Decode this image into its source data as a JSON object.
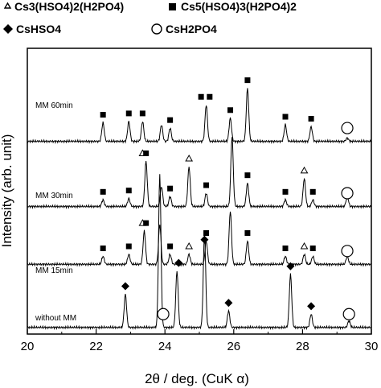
{
  "chart_data": {
    "type": "line",
    "xlabel": "2θ / deg. (CuK α)",
    "ylabel": "Intensity (arb. unit)",
    "xlim": [
      20,
      30
    ],
    "xticks": [
      20,
      22,
      24,
      26,
      28,
      30
    ],
    "ylim": [
      0,
      4.3
    ],
    "grid": false,
    "legend": {
      "placement": "top",
      "entries": [
        {
          "marker": "triangle",
          "label": "Cs3(HSO4)2(H2PO4)"
        },
        {
          "marker": "square",
          "label": "Cs5(HSO4)3(H2PO4)2"
        },
        {
          "marker": "diamond",
          "label": "CsHSO4"
        },
        {
          "marker": "circle",
          "label": "CsH2PO4"
        }
      ]
    },
    "series": [
      {
        "name": "without MM",
        "baseline": 0.1,
        "peaks": [
          {
            "x": 22.85,
            "h": 0.5
          },
          {
            "x": 23.85,
            "h": 2.3
          },
          {
            "x": 24.35,
            "h": 0.85
          },
          {
            "x": 25.15,
            "h": 1.4
          },
          {
            "x": 25.85,
            "h": 0.25
          },
          {
            "x": 27.65,
            "h": 0.8
          },
          {
            "x": 28.25,
            "h": 0.2
          },
          {
            "x": 29.35,
            "h": 0.1
          }
        ],
        "markers": [
          {
            "type": "diamond",
            "x": 22.85
          },
          {
            "type": "circle",
            "x": 23.95
          },
          {
            "type": "diamond",
            "x": 24.4
          },
          {
            "type": "diamond",
            "x": 25.15
          },
          {
            "type": "diamond",
            "x": 25.85
          },
          {
            "type": "diamond",
            "x": 27.65
          },
          {
            "type": "diamond",
            "x": 28.25
          },
          {
            "type": "circle",
            "x": 29.35
          }
        ]
      },
      {
        "name": "MM 15min",
        "baseline": 1.05,
        "peaks": [
          {
            "x": 22.2,
            "h": 0.12
          },
          {
            "x": 22.95,
            "h": 0.15
          },
          {
            "x": 23.4,
            "h": 0.5
          },
          {
            "x": 23.85,
            "h": 0.6
          },
          {
            "x": 24.15,
            "h": 0.15
          },
          {
            "x": 24.7,
            "h": 0.15
          },
          {
            "x": 25.2,
            "h": 0.35
          },
          {
            "x": 25.9,
            "h": 0.8
          },
          {
            "x": 26.4,
            "h": 0.35
          },
          {
            "x": 27.5,
            "h": 0.12
          },
          {
            "x": 28.05,
            "h": 0.15
          },
          {
            "x": 28.3,
            "h": 0.12
          },
          {
            "x": 29.3,
            "h": 0.12
          }
        ],
        "markers": [
          {
            "type": "square",
            "x": 22.2
          },
          {
            "type": "square",
            "x": 22.95
          },
          {
            "type": "triangle",
            "x": 23.35
          },
          {
            "type": "square",
            "x": 23.45
          },
          {
            "type": "square",
            "x": 24.15
          },
          {
            "type": "triangle",
            "x": 24.7
          },
          {
            "type": "square",
            "x": 25.2
          },
          {
            "type": "square",
            "x": 26.4
          },
          {
            "type": "square",
            "x": 27.5
          },
          {
            "type": "triangle",
            "x": 28.05
          },
          {
            "type": "square",
            "x": 28.3
          },
          {
            "type": "circle",
            "x": 29.3
          }
        ]
      },
      {
        "name": "MM 30min",
        "baseline": 1.92,
        "peaks": [
          {
            "x": 22.2,
            "h": 0.1
          },
          {
            "x": 22.95,
            "h": 0.12
          },
          {
            "x": 23.45,
            "h": 0.68
          },
          {
            "x": 23.9,
            "h": 0.3
          },
          {
            "x": 24.15,
            "h": 0.15
          },
          {
            "x": 24.7,
            "h": 0.6
          },
          {
            "x": 25.2,
            "h": 0.2
          },
          {
            "x": 25.95,
            "h": 1.05
          },
          {
            "x": 26.4,
            "h": 0.35
          },
          {
            "x": 27.5,
            "h": 0.1
          },
          {
            "x": 28.05,
            "h": 0.42
          },
          {
            "x": 28.3,
            "h": 0.1
          },
          {
            "x": 29.3,
            "h": 0.15
          }
        ],
        "markers": [
          {
            "type": "square",
            "x": 22.2
          },
          {
            "type": "square",
            "x": 22.95
          },
          {
            "type": "triangle",
            "x": 23.35
          },
          {
            "type": "square",
            "x": 23.45
          },
          {
            "type": "square",
            "x": 24.15
          },
          {
            "type": "triangle",
            "x": 24.7
          },
          {
            "type": "square",
            "x": 25.2
          },
          {
            "type": "square",
            "x": 26.4
          },
          {
            "type": "square",
            "x": 27.5
          },
          {
            "type": "triangle",
            "x": 28.05
          },
          {
            "type": "square",
            "x": 28.3
          },
          {
            "type": "circle",
            "x": 29.3
          }
        ]
      },
      {
        "name": "MM 60min",
        "baseline": 2.9,
        "peaks": [
          {
            "x": 22.2,
            "h": 0.28
          },
          {
            "x": 22.95,
            "h": 0.3
          },
          {
            "x": 23.35,
            "h": 0.3
          },
          {
            "x": 23.9,
            "h": 0.25
          },
          {
            "x": 24.15,
            "h": 0.2
          },
          {
            "x": 25.2,
            "h": 0.55
          },
          {
            "x": 25.9,
            "h": 0.35
          },
          {
            "x": 26.4,
            "h": 0.8
          },
          {
            "x": 27.5,
            "h": 0.25
          },
          {
            "x": 28.25,
            "h": 0.22
          },
          {
            "x": 29.3,
            "h": 0.05
          }
        ],
        "markers": [
          {
            "type": "square",
            "x": 22.2
          },
          {
            "type": "square",
            "x": 22.95
          },
          {
            "type": "square",
            "x": 23.35
          },
          {
            "type": "square",
            "x": 24.15
          },
          {
            "type": "square",
            "x": 25.05
          },
          {
            "type": "square",
            "x": 25.3
          },
          {
            "type": "square",
            "x": 25.9
          },
          {
            "type": "square",
            "x": 26.4
          },
          {
            "type": "square",
            "x": 27.5
          },
          {
            "type": "square",
            "x": 28.25
          },
          {
            "type": "circle",
            "x": 29.3
          }
        ]
      }
    ]
  }
}
